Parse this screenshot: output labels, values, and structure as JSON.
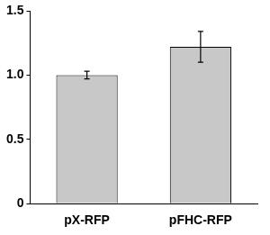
{
  "chart_data": {
    "type": "bar",
    "categories": [
      "pX-RFP",
      "pFHC-RFP"
    ],
    "values": [
      1.0,
      1.22
    ],
    "errors": [
      0.03,
      0.12
    ],
    "color": "#c8c8c8",
    "ylim": [
      0,
      1.5
    ],
    "yticks": [
      0,
      0.5,
      {
        "value": 1,
        "label": "1.0"
      },
      1.5
    ],
    "grid": false
  }
}
